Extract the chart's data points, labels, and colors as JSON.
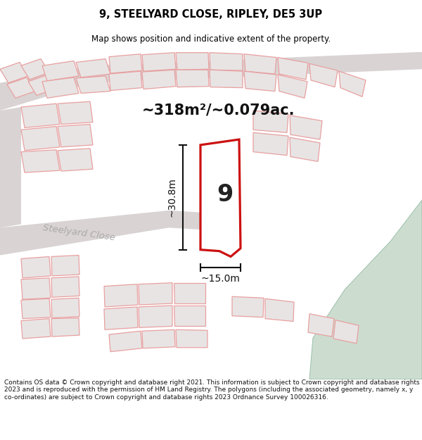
{
  "title_line1": "9, STEELYARD CLOSE, RIPLEY, DE5 3UP",
  "title_line2": "Map shows position and indicative extent of the property.",
  "area_label": "~318m²/~0.079ac.",
  "property_number": "9",
  "dim_vertical": "~30.8m",
  "dim_horizontal": "~15.0m",
  "street_label": "Steelyard Close",
  "footer_lines": [
    "Contains OS data © Crown copyright and database right 2021. This information is subject to Crown copyright and database rights 2023 and is reproduced with the permission of",
    "HM Land Registry. The polygons (including the associated geometry, namely x, y co-ordinates) are subject to Crown copyright and database rights 2023 Ordnance Survey",
    "100026316."
  ],
  "map_bg": "#f0edec",
  "road_color": "#d9d3d3",
  "pink_line": "#e8a0a0",
  "plot_outline": "#cc1111",
  "plot_fill": "#ffffff",
  "green_color": "#ccddd0",
  "green_edge": "#9abfaa",
  "dim_color": "#111111",
  "street_label_color": "#aaaaaa",
  "building_fill": "#e8e4e4",
  "number_color": "#222222",
  "area_color": "#111111"
}
